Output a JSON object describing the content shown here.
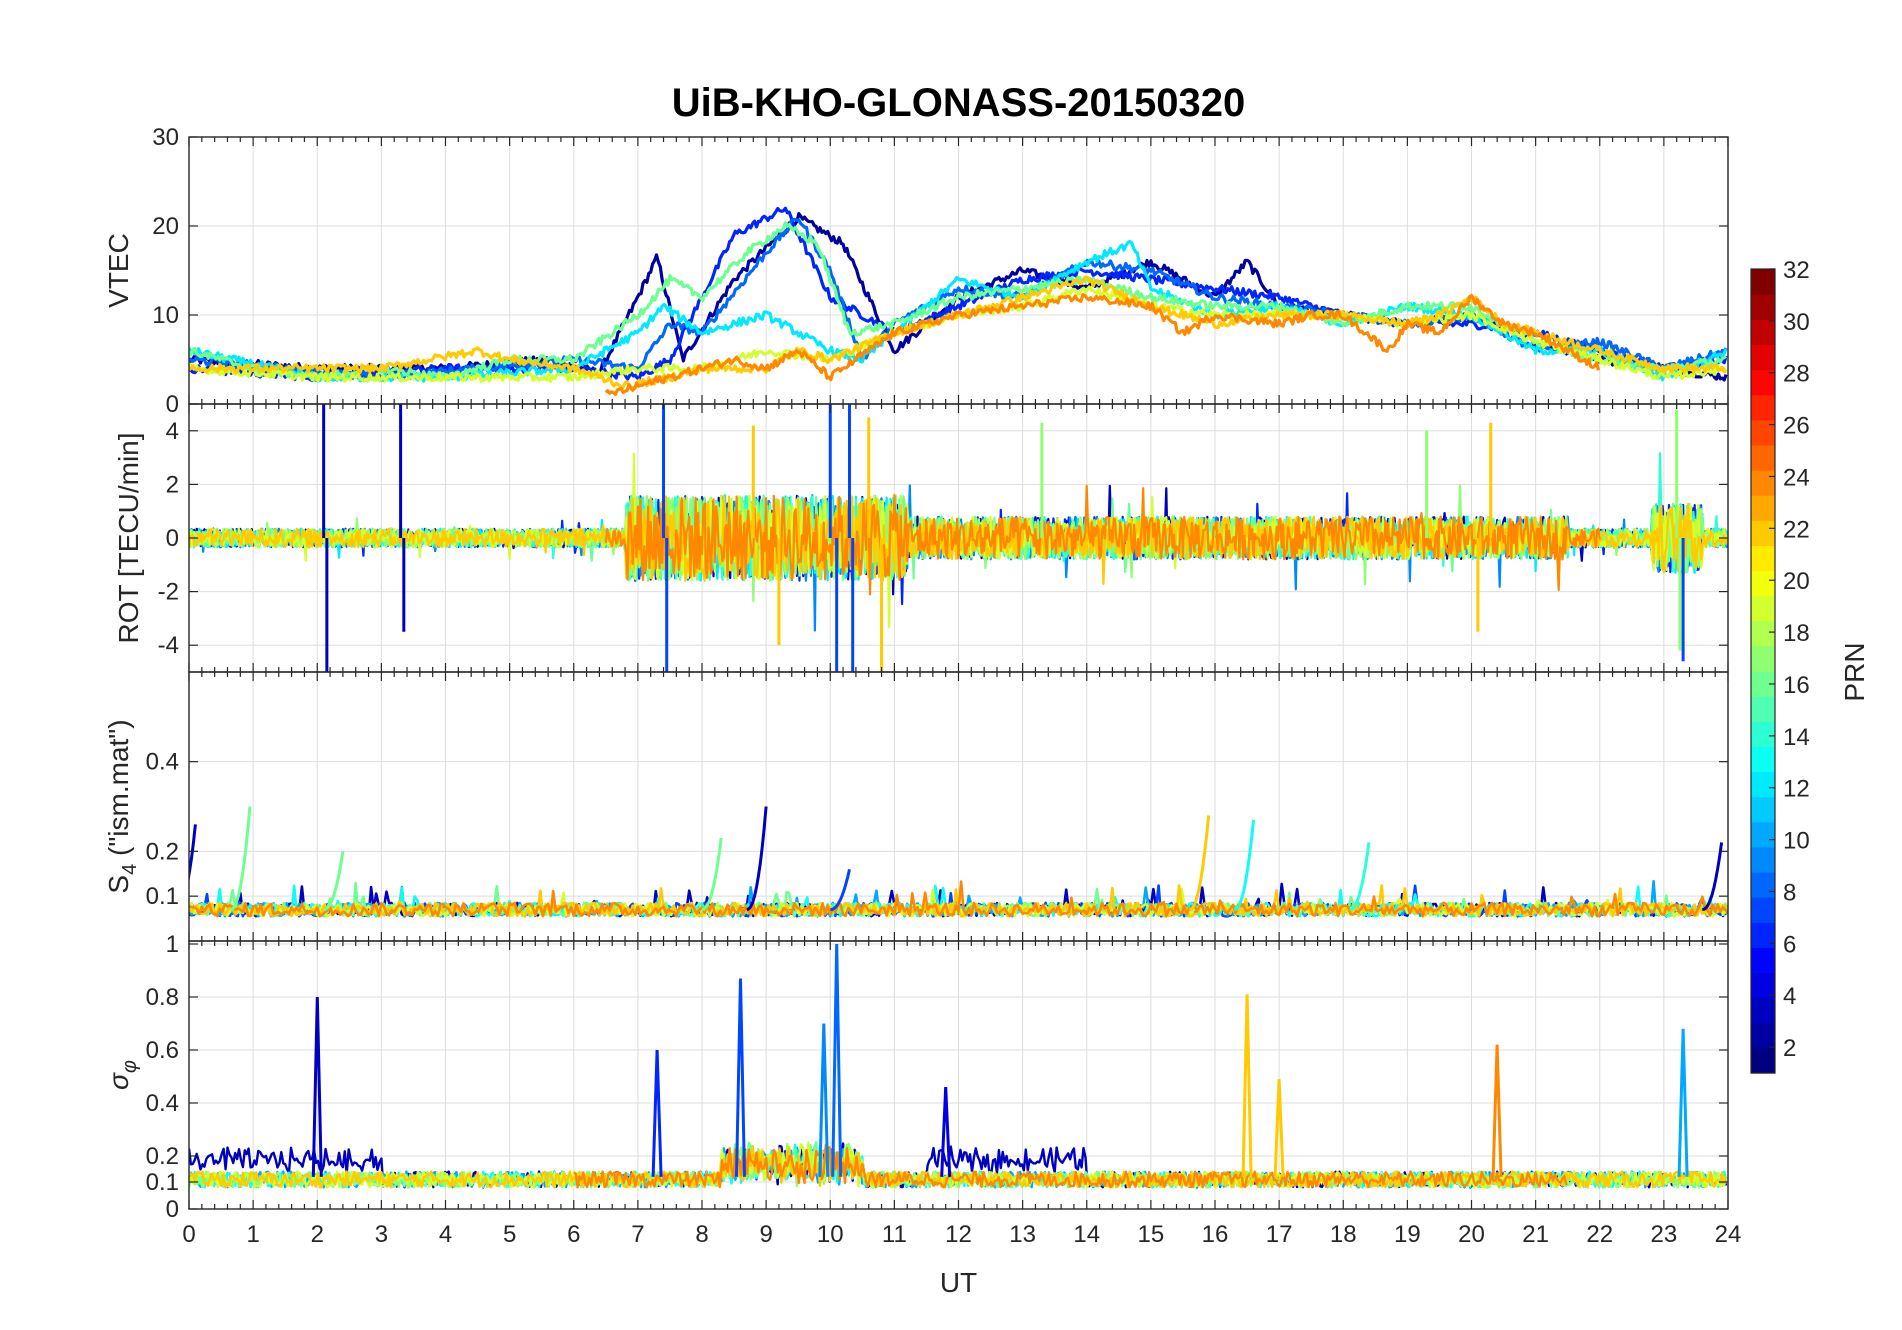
{
  "figure": {
    "title": "UiB-KHO-GLONASS-20150320",
    "xlabel": "UT",
    "x_ticks": [
      "0",
      "1",
      "2",
      "3",
      "4",
      "5",
      "6",
      "7",
      "8",
      "9",
      "10",
      "11",
      "12",
      "13",
      "14",
      "15",
      "16",
      "17",
      "18",
      "19",
      "20",
      "21",
      "22",
      "23",
      "24"
    ]
  },
  "colorbar": {
    "label": "PRN",
    "ticks": [
      "2",
      "4",
      "6",
      "8",
      "10",
      "12",
      "14",
      "16",
      "18",
      "20",
      "22",
      "24",
      "26",
      "28",
      "30",
      "32"
    ],
    "range": [
      1,
      32
    ],
    "colormap": "jet"
  },
  "chart_data": [
    {
      "type": "line",
      "panel": "VTEC",
      "ylabel": "VTEC",
      "xlim": [
        0,
        24
      ],
      "ylim": [
        0,
        30
      ],
      "y_ticks": [
        "0",
        "10",
        "20",
        "30"
      ],
      "series": [
        {
          "prn": 2,
          "x": [
            0,
            2,
            4,
            5.6,
            6.4,
            7,
            7.3,
            7.7,
            8.5,
            9.5,
            10.2,
            11,
            12,
            13,
            14,
            15,
            16,
            16.5,
            17,
            18,
            19,
            20,
            21,
            22,
            23,
            24
          ],
          "y": [
            5,
            4,
            4,
            5,
            3.5,
            12,
            16.5,
            5,
            14,
            21,
            18,
            6,
            12,
            15,
            13,
            16,
            12,
            16,
            11,
            10,
            9,
            10,
            7,
            5,
            4,
            3
          ]
        },
        {
          "prn": 6,
          "x": [
            0,
            2,
            4,
            6,
            7,
            7.5,
            8.5,
            9.3,
            10,
            11,
            12,
            13,
            14,
            15,
            16,
            17,
            18,
            19,
            20,
            21,
            22,
            23,
            24
          ],
          "y": [
            4,
            3,
            4,
            4,
            3,
            5,
            19,
            22,
            12,
            8,
            11,
            14,
            15,
            14,
            13,
            12,
            10,
            9,
            9,
            8,
            6,
            4,
            5
          ]
        },
        {
          "prn": 8,
          "x": [
            0,
            3,
            6,
            7,
            7.5,
            8,
            9,
            9.5,
            10,
            10.5,
            11,
            12,
            13,
            14,
            15,
            16,
            17,
            18,
            19,
            20,
            21,
            22,
            23,
            24
          ],
          "y": [
            5,
            3,
            5,
            4,
            9,
            8,
            17,
            21,
            15,
            5,
            9,
            13,
            12,
            16,
            15,
            12,
            11,
            10,
            9,
            10,
            6,
            7,
            4,
            6
          ]
        },
        {
          "prn": 12,
          "x": [
            0,
            2,
            4,
            6,
            7,
            7.4,
            8,
            9,
            10,
            10.5,
            11,
            12,
            13,
            14,
            14.7,
            15,
            16,
            17,
            18,
            19,
            20,
            21,
            22,
            23,
            24
          ],
          "y": [
            6,
            3,
            3,
            4,
            8,
            11,
            8,
            10,
            6,
            5,
            8,
            14,
            12,
            16,
            18,
            13,
            10,
            11,
            9,
            11,
            10,
            6,
            6,
            3,
            6
          ]
        },
        {
          "prn": 16,
          "x": [
            0,
            1,
            2,
            3,
            4,
            5,
            6,
            7,
            7.5,
            8,
            8.7,
            9.3,
            9.8,
            10.3,
            11,
            12,
            13,
            14,
            15,
            16,
            17,
            18,
            19,
            20,
            21,
            22,
            23,
            24
          ],
          "y": [
            6,
            4,
            3,
            4,
            3,
            5,
            5,
            10,
            14,
            12,
            17,
            20,
            18,
            8,
            9,
            12,
            13,
            14,
            12,
            11,
            11,
            9,
            11,
            11,
            7,
            5,
            4,
            5
          ]
        },
        {
          "prn": 19,
          "x": [
            0,
            2,
            4,
            6,
            7,
            8,
            9,
            10,
            11,
            12,
            13,
            14,
            15,
            16,
            17,
            18,
            19,
            20,
            21,
            22,
            23,
            24
          ],
          "y": [
            4,
            3,
            3,
            3,
            4,
            4,
            6,
            5,
            8,
            10,
            11,
            13,
            11,
            10,
            10,
            10,
            9,
            10,
            7,
            5,
            3,
            4
          ]
        },
        {
          "prn": 22,
          "x": [
            0,
            3,
            4.5,
            5,
            6,
            6.8,
            7.5,
            8,
            9,
            9.5,
            10,
            11,
            12,
            13,
            14,
            15,
            16,
            17,
            18,
            19,
            19.5,
            20,
            20.5,
            21,
            22,
            23,
            24
          ],
          "y": [
            4,
            4,
            6,
            5,
            4,
            2,
            3,
            4,
            4,
            6,
            5,
            8,
            10,
            12,
            14,
            11,
            9,
            10,
            10,
            9,
            10,
            12,
            9,
            8,
            6,
            4,
            4
          ]
        },
        {
          "prn": 24,
          "x": [
            6.5,
            7,
            7.5,
            8,
            8.5,
            9,
            9.5,
            10,
            11,
            12,
            13,
            14,
            15,
            15.5,
            16,
            17,
            17.5,
            18,
            18.7,
            19,
            19.5,
            20,
            20.5,
            21,
            21.5,
            22
          ],
          "y": [
            1,
            2,
            3,
            4,
            5,
            4,
            6,
            3,
            8,
            10,
            11,
            12,
            11,
            8,
            10,
            9,
            10,
            10,
            6,
            9,
            8,
            12,
            9,
            8,
            6,
            4
          ]
        }
      ]
    },
    {
      "type": "line",
      "panel": "ROT",
      "ylabel": "ROT [TECU/min]",
      "xlim": [
        0,
        24
      ],
      "ylim": [
        -5,
        5
      ],
      "y_ticks": [
        "-4",
        "-2",
        "0",
        "2",
        "4"
      ],
      "series": [
        {
          "prn": 3,
          "spikes": [
            [
              2.1,
              5
            ],
            [
              2.15,
              -5
            ],
            [
              3.3,
              5
            ],
            [
              3.35,
              -3.5
            ]
          ]
        },
        {
          "prn": 7,
          "spikes": [
            [
              7.4,
              5
            ],
            [
              7.45,
              -5
            ],
            [
              10,
              5
            ],
            [
              10.1,
              -5
            ],
            [
              10.3,
              5
            ],
            [
              10.35,
              -5
            ],
            [
              23.3,
              -4.6
            ]
          ]
        },
        {
          "prn": 22,
          "spikes": [
            [
              8.8,
              4.2
            ],
            [
              9.2,
              -4
            ],
            [
              10.6,
              4.5
            ],
            [
              10.8,
              -5
            ],
            [
              20.3,
              4.3
            ],
            [
              20.1,
              -3.5
            ]
          ]
        },
        {
          "prn": 17,
          "spikes": [
            [
              13.3,
              4.3
            ],
            [
              19.3,
              4
            ],
            [
              23.2,
              4.8
            ],
            [
              23.25,
              -4.2
            ]
          ]
        }
      ]
    },
    {
      "type": "line",
      "panel": "S4",
      "ylabel": "S",
      "ylabel_subscript": "4",
      "ylabel_suffix": " (\"ism.mat\")",
      "xlim": [
        0,
        24
      ],
      "ylim": [
        0,
        0.6
      ],
      "y_ticks": [
        "0.1",
        "0.2",
        "0.4"
      ],
      "peaks": [
        {
          "prn": 3,
          "x": 0.1,
          "y": 0.26
        },
        {
          "prn": 16,
          "x": 0.95,
          "y": 0.3
        },
        {
          "prn": 16,
          "x": 2.4,
          "y": 0.2
        },
        {
          "prn": 16,
          "x": 8.3,
          "y": 0.23
        },
        {
          "prn": 3,
          "x": 9,
          "y": 0.3
        },
        {
          "prn": 7,
          "x": 10.3,
          "y": 0.16
        },
        {
          "prn": 22,
          "x": 15.9,
          "y": 0.28
        },
        {
          "prn": 13,
          "x": 16.6,
          "y": 0.27
        },
        {
          "prn": 14,
          "x": 18.4,
          "y": 0.22
        },
        {
          "prn": 3,
          "x": 23.9,
          "y": 0.22
        }
      ]
    },
    {
      "type": "line",
      "panel": "sigma_phi",
      "ylabel": "σ",
      "ylabel_subscript": "φ",
      "xlim": [
        0,
        24
      ],
      "ylim": [
        0,
        1
      ],
      "y_ticks": [
        "0",
        "0.1",
        "0.2",
        "0.4",
        "0.6",
        "0.8",
        "1"
      ],
      "peaks": [
        {
          "prn": 3,
          "x": 2,
          "y": 0.8
        },
        {
          "prn": 6,
          "x": 7.3,
          "y": 0.6
        },
        {
          "prn": 7,
          "x": 8.6,
          "y": 0.87
        },
        {
          "prn": 8,
          "x": 10.1,
          "y": 1.0
        },
        {
          "prn": 9,
          "x": 9.9,
          "y": 0.7
        },
        {
          "prn": 4,
          "x": 11.8,
          "y": 0.46
        },
        {
          "prn": 22,
          "x": 16.5,
          "y": 0.81
        },
        {
          "prn": 22,
          "x": 17,
          "y": 0.49
        },
        {
          "prn": 24,
          "x": 20.4,
          "y": 0.62
        },
        {
          "prn": 10,
          "x": 23.3,
          "y": 0.68
        }
      ]
    }
  ]
}
